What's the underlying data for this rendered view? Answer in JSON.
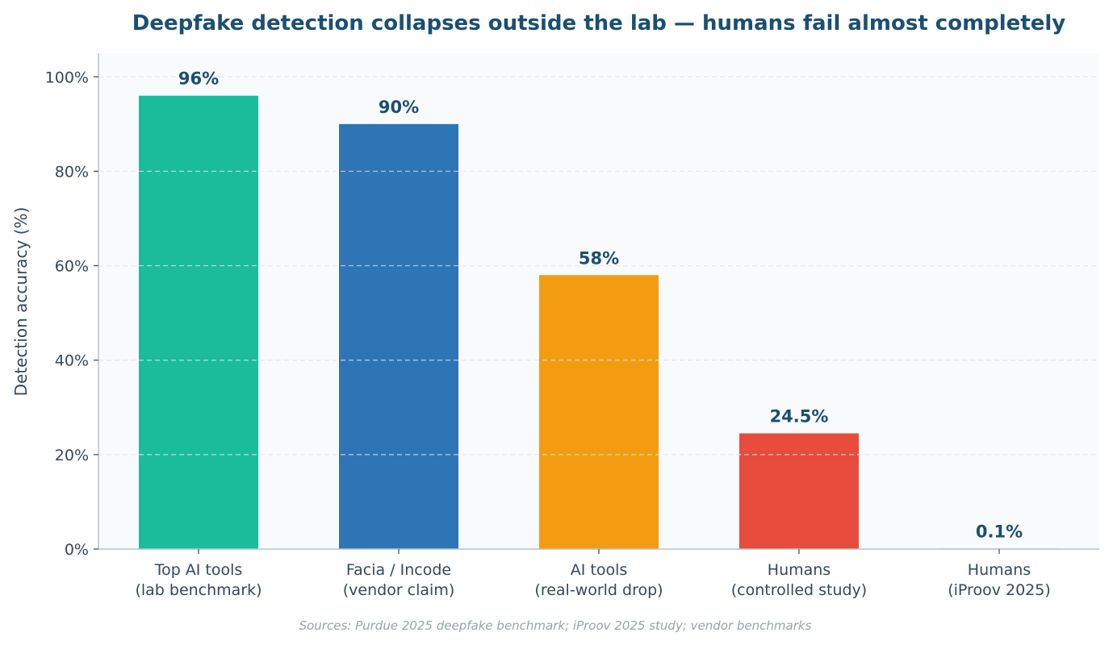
{
  "chart_data": {
    "type": "bar",
    "title": "Deepfake detection collapses outside the lab — humans fail almost completely",
    "ylabel": "Detection accuracy (%)",
    "xlabel": "",
    "ylim": [
      0,
      105
    ],
    "yticks": [
      0,
      20,
      40,
      60,
      80,
      100
    ],
    "ytick_labels": [
      "0%",
      "20%",
      "40%",
      "60%",
      "80%",
      "100%"
    ],
    "grid": true,
    "categories": [
      [
        "Top AI tools",
        "(lab benchmark)"
      ],
      [
        "Facia / Incode",
        "(vendor claim)"
      ],
      [
        "AI tools",
        "(real-world drop)"
      ],
      [
        "Humans",
        "(controlled study)"
      ],
      [
        "Humans",
        "(iProov 2025)"
      ]
    ],
    "values": [
      96,
      90,
      58,
      24.5,
      0.1
    ],
    "value_labels": [
      "96%",
      "90%",
      "58%",
      "24.5%",
      "0.1%"
    ],
    "colors": [
      "#1abc9c",
      "#2e75b6",
      "#f39c12",
      "#e74c3c",
      "#8e44ad"
    ],
    "source": "Sources: Purdue 2025 deepfake benchmark; iProov 2025 study; vendor benchmarks"
  }
}
